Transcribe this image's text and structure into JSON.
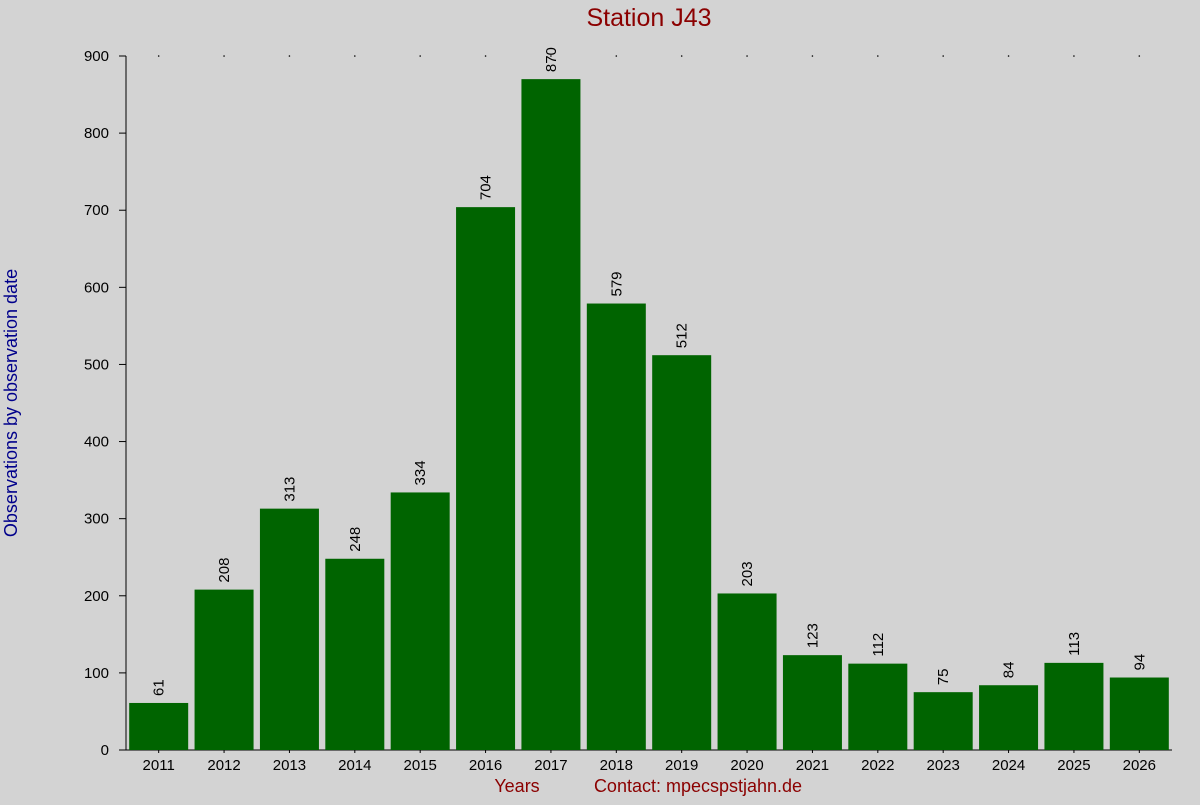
{
  "chart_data": {
    "type": "bar",
    "title": "Station J43",
    "xlabel": "Years",
    "ylabel": "Observations by observation date",
    "footer_contact": "Contact: mpecspstjahn.de",
    "categories": [
      "2011",
      "2012",
      "2013",
      "2014",
      "2015",
      "2016",
      "2017",
      "2018",
      "2019",
      "2020",
      "2021",
      "2022",
      "2023",
      "2024",
      "2025",
      "2026"
    ],
    "values": [
      61,
      208,
      313,
      248,
      334,
      704,
      870,
      579,
      512,
      203,
      123,
      112,
      75,
      84,
      113,
      94
    ],
    "data_labels": [
      "61",
      "208",
      "313",
      "248",
      "334",
      "704",
      "870",
      "579",
      "512",
      "203",
      "123",
      "112",
      "75",
      "84",
      "113",
      "94"
    ],
    "ylim": [
      0,
      900
    ],
    "yticks": [
      "0",
      "100",
      "200",
      "300",
      "400",
      "500",
      "600",
      "700",
      "800",
      "900"
    ],
    "grid": false,
    "legend": "none",
    "colors": {
      "bar": "#006400",
      "title": "#8b0000",
      "xlabel": "#8b0000",
      "ylabel": "#00008b",
      "background": "#d3d3d3",
      "axis": "#000000"
    }
  }
}
